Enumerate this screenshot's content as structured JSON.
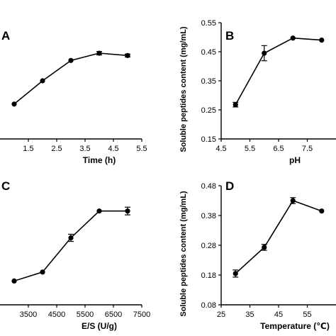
{
  "chart_data": [
    {
      "label": "A",
      "type": "line",
      "xlabel": "Time (h)",
      "ylabel": "",
      "xticks": [
        "1.5",
        "2.5",
        "3.5",
        "4.5",
        "5.5"
      ],
      "yticks": [],
      "xlim": [
        0.5,
        5.5
      ],
      "ylim": [
        0.15,
        0.55
      ],
      "x": [
        1,
        2,
        3,
        4,
        5
      ],
      "y": [
        0.27,
        0.35,
        0.42,
        0.445,
        0.437
      ],
      "yerr": [
        0.0,
        0.0,
        0.0,
        0.006,
        0.005
      ]
    },
    {
      "label": "B",
      "type": "line",
      "xlabel": "pH",
      "ylabel": "Soluble peptides content (mg/mL)",
      "xticks": [
        "4.5",
        "5.5",
        "6.5",
        "7.5"
      ],
      "yticks": [
        "0.15",
        "0.25",
        "0.35",
        "0.45",
        "0.55"
      ],
      "xlim": [
        4.5,
        8.5
      ],
      "ylim": [
        0.15,
        0.55
      ],
      "x": [
        5,
        6,
        7,
        8
      ],
      "y": [
        0.268,
        0.445,
        0.497,
        0.49
      ],
      "yerr": [
        0.008,
        0.026,
        0.0,
        0.0
      ]
    },
    {
      "label": "C",
      "type": "line",
      "xlabel": "E/S (U/g)",
      "ylabel": "",
      "xticks": [
        "3500",
        "4500",
        "5500",
        "6500",
        "7500"
      ],
      "yticks": [],
      "xlim": [
        2500,
        7500
      ],
      "ylim": [
        0.08,
        0.48
      ],
      "x": [
        3000,
        4000,
        5000,
        6000,
        7000
      ],
      "y": [
        0.16,
        0.19,
        0.305,
        0.395,
        0.395
      ],
      "yerr": [
        0.0,
        0.0,
        0.012,
        0.0,
        0.013
      ]
    },
    {
      "label": "D",
      "type": "line",
      "xlabel": "Temperature (℃)",
      "ylabel": "Soluble peptides content (mg/mL)",
      "xticks": [
        "25",
        "35",
        "45",
        "55"
      ],
      "yticks": [
        "0.08",
        "0.18",
        "0.28",
        "0.38",
        "0.48"
      ],
      "xlim": [
        25,
        65
      ],
      "ylim": [
        0.08,
        0.48
      ],
      "x": [
        30,
        40,
        50,
        60
      ],
      "y": [
        0.185,
        0.273,
        0.43,
        0.395
      ],
      "yerr": [
        0.012,
        0.01,
        0.01,
        0.0
      ]
    }
  ]
}
